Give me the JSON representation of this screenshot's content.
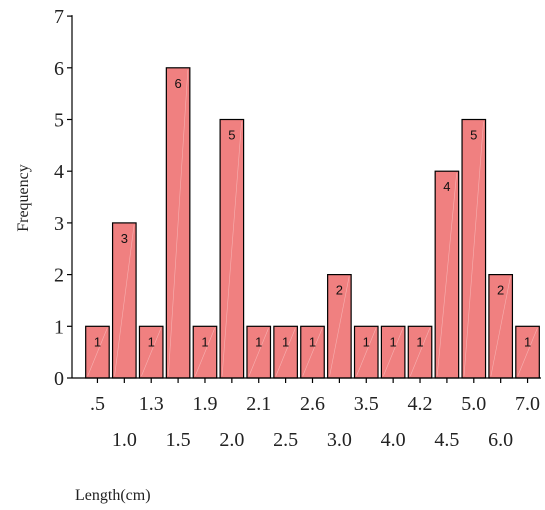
{
  "chart_data": {
    "type": "bar",
    "categories": [
      ".5",
      "1.0",
      "1.3",
      "1.5",
      "1.9",
      "2.0",
      "2.1",
      "2.5",
      "2.6",
      "3.0",
      "3.5",
      "4.0",
      "4.2",
      "4.5",
      "5.0",
      "6.0",
      "7.0"
    ],
    "values": [
      1,
      3,
      1,
      6,
      1,
      5,
      1,
      1,
      1,
      2,
      1,
      1,
      1,
      4,
      5,
      2,
      1
    ],
    "title": "",
    "xlabel": "Length(cm)",
    "ylabel": "Frequency",
    "ylim": [
      0,
      7
    ],
    "yticks": [
      "0",
      "1",
      "2",
      "3",
      "4",
      "5",
      "6",
      "7"
    ],
    "grid": false,
    "legend": "none",
    "bar_color": "#f08080",
    "bar_edge_color": "#000000"
  }
}
